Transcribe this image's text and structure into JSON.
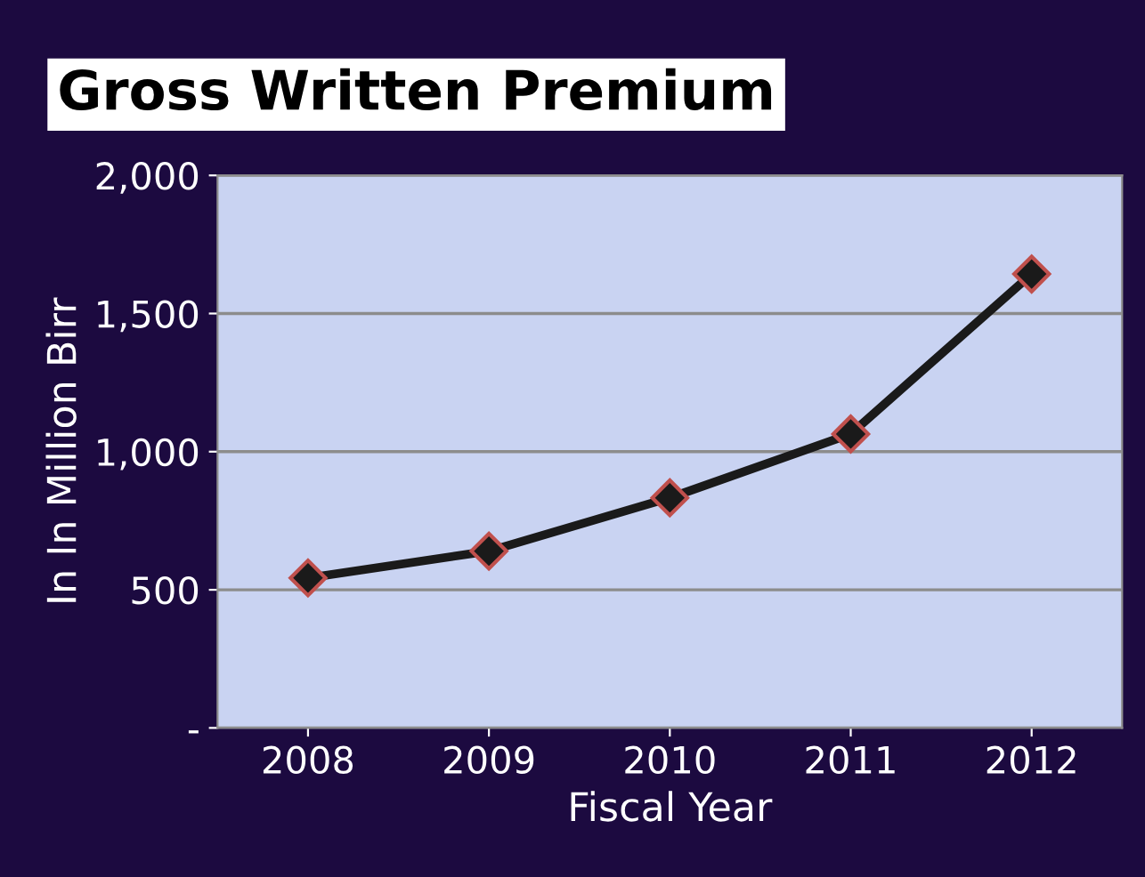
{
  "chart_data": {
    "type": "line",
    "title": "Gross Written Premium",
    "xlabel": "Fiscal Year",
    "ylabel": "In In Million Birr",
    "categories": [
      "2008",
      "2009",
      "2010",
      "2011",
      "2012"
    ],
    "series": [
      {
        "color": "#1a1a1a",
        "values": [
          543,
          640,
          833,
          1064,
          1643
        ]
      }
    ],
    "ylim": [
      0,
      2000
    ],
    "yticks": [
      {
        "value": 0,
        "label": "-"
      },
      {
        "value": 500,
        "label": "500"
      },
      {
        "value": 1000,
        "label": "1,000"
      },
      {
        "value": 1500,
        "label": "1,500"
      },
      {
        "value": 2000,
        "label": "2,000"
      }
    ],
    "grid": "y",
    "marker": "diamond",
    "line_style": "solid",
    "legend": false
  }
}
